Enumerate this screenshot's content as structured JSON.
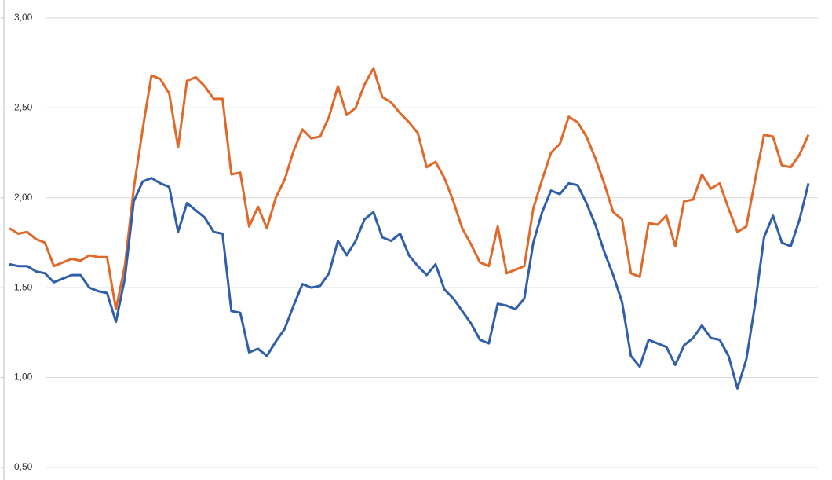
{
  "chart_data": {
    "type": "line",
    "categories": [
      null,
      null,
      null,
      null,
      null,
      null,
      null,
      null,
      null,
      null,
      null,
      null,
      null,
      null,
      null,
      null,
      null,
      null,
      null,
      null,
      null,
      null,
      null,
      null,
      null,
      null,
      null,
      null,
      null,
      null,
      null,
      null,
      null,
      null,
      null,
      null,
      null,
      null,
      null,
      null,
      null,
      null,
      null,
      null,
      null,
      null,
      null,
      null,
      null,
      null,
      null,
      null,
      null,
      null,
      null,
      null,
      null,
      null,
      null,
      null,
      null,
      null,
      null,
      null,
      null,
      null,
      null,
      null,
      null,
      null,
      null,
      null,
      null,
      null,
      null,
      null,
      null,
      null,
      null,
      null,
      null,
      null,
      null,
      null,
      null,
      null,
      null,
      null,
      null,
      null,
      null
    ],
    "series": [
      {
        "color": "#e0692a",
        "values": [
          1.83,
          1.8,
          1.81,
          1.77,
          1.75,
          1.62,
          1.64,
          1.66,
          1.65,
          1.68,
          1.67,
          1.67,
          1.38,
          1.62,
          2.05,
          2.38,
          2.68,
          2.66,
          2.58,
          2.28,
          2.65,
          2.67,
          2.62,
          2.55,
          2.55,
          2.13,
          2.14,
          1.84,
          1.95,
          1.83,
          2.0,
          2.1,
          2.26,
          2.38,
          2.33,
          2.34,
          2.45,
          2.62,
          2.46,
          2.5,
          2.63,
          2.72,
          2.56,
          2.53,
          2.47,
          2.42,
          2.36,
          2.17,
          2.2,
          2.11,
          1.98,
          1.83,
          1.74,
          1.64,
          1.62,
          1.84,
          1.58,
          1.6,
          1.62,
          1.94,
          2.1,
          2.25,
          2.3,
          2.45,
          2.42,
          2.34,
          2.22,
          2.08,
          1.92,
          1.88,
          1.58,
          1.56,
          1.86,
          1.85,
          1.9,
          1.73,
          1.98,
          1.99,
          2.13,
          2.05,
          2.08,
          1.94,
          1.81,
          1.84,
          2.1,
          2.35,
          2.34,
          2.18,
          2.17,
          2.24,
          2.35
        ]
      },
      {
        "color": "#2f5fab",
        "values": [
          1.63,
          1.62,
          1.62,
          1.59,
          1.58,
          1.53,
          1.55,
          1.57,
          1.57,
          1.5,
          1.48,
          1.47,
          1.31,
          1.55,
          1.98,
          2.09,
          2.11,
          2.08,
          2.06,
          1.81,
          1.97,
          1.93,
          1.89,
          1.81,
          1.8,
          1.37,
          1.36,
          1.14,
          1.16,
          1.12,
          1.2,
          1.27,
          1.4,
          1.52,
          1.5,
          1.51,
          1.58,
          1.76,
          1.68,
          1.76,
          1.88,
          1.92,
          1.78,
          1.76,
          1.8,
          1.68,
          1.62,
          1.57,
          1.63,
          1.49,
          1.44,
          1.37,
          1.3,
          1.21,
          1.19,
          1.41,
          1.4,
          1.38,
          1.44,
          1.75,
          1.92,
          2.04,
          2.02,
          2.08,
          2.07,
          1.97,
          1.85,
          1.7,
          1.57,
          1.42,
          1.12,
          1.06,
          1.21,
          1.19,
          1.17,
          1.07,
          1.18,
          1.22,
          1.29,
          1.22,
          1.21,
          1.12,
          0.94,
          1.1,
          1.41,
          1.78,
          1.9,
          1.75,
          1.73,
          1.88,
          2.08
        ]
      }
    ],
    "ylim": [
      0.43,
      3.1
    ],
    "yticks": [
      {
        "value": 0.5,
        "label": "0,50"
      },
      {
        "value": 1,
        "label": "1,00"
      },
      {
        "value": 1.5,
        "label": "1,50"
      },
      {
        "value": 2,
        "label": "2,00"
      },
      {
        "value": 2.5,
        "label": "2,50"
      },
      {
        "value": 3,
        "label": "3,00"
      }
    ],
    "grid": true
  }
}
